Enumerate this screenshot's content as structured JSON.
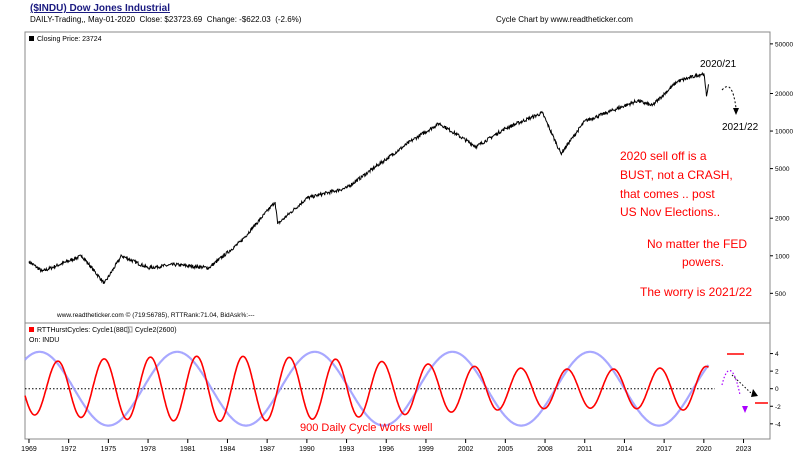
{
  "header": {
    "title": "($INDU) Dow Jones Industrial",
    "subtitle": "DAILY-Trading,, May-01-2020  Close: $23723.69  Change: -$622.03  (-2.6%)",
    "right_label": "Cycle Chart by www.readtheticker.com"
  },
  "colors": {
    "price": "#000000",
    "cycle1": "#ff0000",
    "cycle2": "#9999ff",
    "annotation": "#ff0000"
  },
  "chart_data": [
    {
      "type": "line",
      "panel": "price",
      "legend": "Closing Price: 23724",
      "y_scale": "log",
      "ylim": [
        300,
        60000
      ],
      "y_ticks": [
        500,
        1000,
        2000,
        5000,
        10000,
        20000,
        50000
      ],
      "x": [
        1969,
        1970,
        1973,
        1974.7,
        1976,
        1978,
        1980,
        1982.6,
        1985,
        1987.6,
        1987.8,
        1990,
        1993,
        1995,
        1998,
        2000,
        2002.8,
        2005,
        2007.8,
        2009.2,
        2011,
        2013,
        2015,
        2016.1,
        2018,
        2020,
        2020.2,
        2020.35
      ],
      "values": [
        900,
        750,
        1000,
        600,
        1000,
        800,
        850,
        800,
        1300,
        2700,
        1800,
        2900,
        3500,
        5000,
        8500,
        11500,
        7500,
        10500,
        14000,
        6600,
        12000,
        14500,
        17500,
        16000,
        25000,
        29000,
        19000,
        23724
      ],
      "annotations": {
        "label_top": "2020/21",
        "label_bottom": "2021/22",
        "watermark": "www.readtheticker.com © (719:56785), RTTRank:71.04, BidAsk%:---",
        "commentary_1": "2020 sell off is a",
        "commentary_2": "BUST, not a CRASH,",
        "commentary_3": "that comes .. post",
        "commentary_4": "US Nov Elections..",
        "commentary_5": "No matter the FED",
        "commentary_6": "powers.",
        "commentary_7": "The worry is 2021/22"
      }
    },
    {
      "type": "line",
      "panel": "cycles",
      "legend_1": "RTTHurstCycles: Cycle1(880)",
      "legend_2": "Cycle2(2600)",
      "on_label": "On: INDU",
      "ylim": [
        -5.5,
        6
      ],
      "y_ticks": [
        -4,
        -2,
        0,
        2,
        4
      ],
      "series": [
        {
          "name": "Cycle1(880)",
          "period_years": 3.5,
          "amplitude": 3.7,
          "phase_year": 1970.3
        },
        {
          "name": "Cycle2(2600)",
          "period_years": 10.4,
          "amplitude": 4.2,
          "phase_year": 1967.2
        }
      ],
      "annotation": "900 Daily Cycle Works well"
    }
  ],
  "x_axis": {
    "range": [
      1968.7,
      2025
    ],
    "ticks": [
      "1969",
      "1972",
      "1975",
      "1978",
      "1981",
      "1984",
      "1987",
      "1990",
      "1993",
      "1996",
      "1999",
      "2002",
      "2005",
      "2008",
      "2011",
      "2014",
      "2017",
      "2020",
      "2023"
    ]
  }
}
